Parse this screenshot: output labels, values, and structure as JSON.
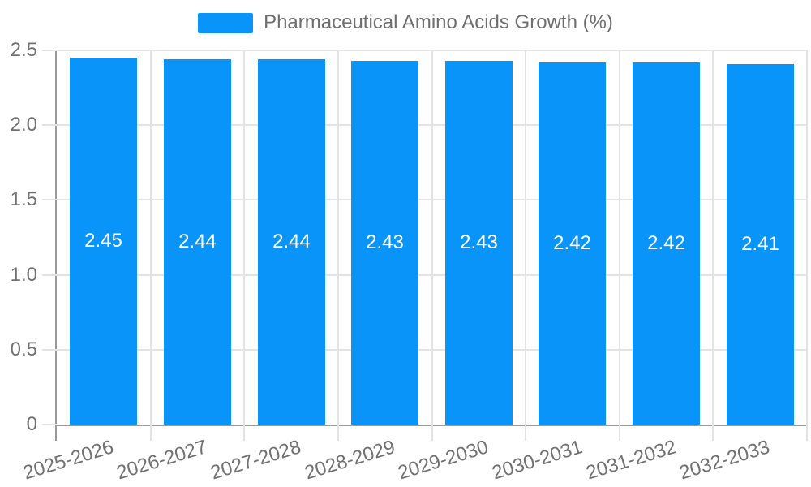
{
  "legend": {
    "label": "Pharmaceutical Amino Acids Growth (%)"
  },
  "chart_data": {
    "type": "bar",
    "title": "Pharmaceutical Amino Acids Growth (%)",
    "categories": [
      "2025-2026",
      "2026-2027",
      "2027-2028",
      "2028-2029",
      "2029-2030",
      "2030-2031",
      "2031-2032",
      "2032-2033"
    ],
    "values": [
      2.45,
      2.44,
      2.44,
      2.43,
      2.43,
      2.42,
      2.42,
      2.41
    ],
    "value_labels": [
      "2.45",
      "2.44",
      "2.44",
      "2.43",
      "2.43",
      "2.42",
      "2.42",
      "2.41"
    ],
    "xlabel": "",
    "ylabel": "",
    "ylim": [
      0,
      2.5
    ],
    "yticks": [
      0,
      0.5,
      1,
      1.5,
      2,
      2.5
    ],
    "ytick_labels": [
      "0",
      "0.5",
      "1.0",
      "1.5",
      "2.0",
      "2.5"
    ],
    "grid": true,
    "legend_position": "top",
    "colors": {
      "bar": "#0894f8",
      "bar_label": "#ffffff",
      "grid": "#e3e3e3",
      "axis": "#9a9a9a",
      "tick_text": "#717171",
      "legend_text": "#6e6e6e",
      "background": "#ffffff"
    }
  }
}
